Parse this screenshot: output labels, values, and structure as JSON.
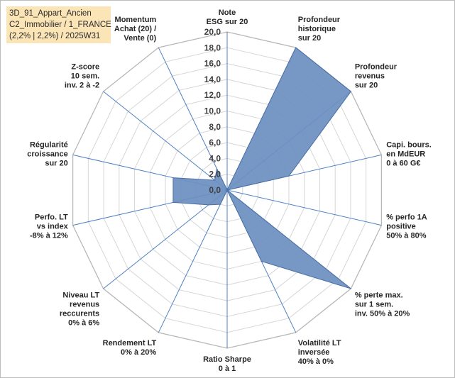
{
  "title_lines": [
    "3D_91_Appart_Ancien",
    "C2_Immobilier / 1_FRANCE",
    "(2,2% | 2,2%) / 2025W31"
  ],
  "chart_data": {
    "type": "radar",
    "title": "3D_91_Appart_Ancien C2_Immobilier / 1_FRANCE (2,2% | 2,2%) / 2025W31",
    "rlim": [
      0,
      20
    ],
    "grid": true,
    "legend": "none",
    "tick_labels": [
      "0,0",
      "2,0",
      "4,0",
      "6,0",
      "8,0",
      "10,0",
      "12,0",
      "14,0",
      "16,0",
      "18,0",
      "20,0"
    ],
    "categories": [
      [
        "Note",
        "ESG sur 20"
      ],
      [
        "Profondeur",
        "historique",
        "sur 20"
      ],
      [
        "Profondeur",
        "revenus",
        "sur 20"
      ],
      [
        "Capi. bours.",
        "en MdEUR",
        "0 à 60 G€"
      ],
      [
        "% perfo 1A",
        "positive",
        "50% à 80%"
      ],
      [
        "% perte max.",
        "sur 1 sem.",
        "inv. 50% à 20%"
      ],
      [
        "Volatilité LT",
        "inversée",
        "40% à 0%"
      ],
      [
        "Ratio Sharpe",
        "0 à 1"
      ],
      [
        "Rendement LT",
        "0% à 20%"
      ],
      [
        "Niveau LT",
        "revenus",
        "reccurents",
        "0% à 6%"
      ],
      [
        "Perfo. LT",
        "vs index",
        "-8% à 12%"
      ],
      [
        "Régularité",
        "croissance",
        "sur 20"
      ],
      [
        "Z-score",
        "10 sem.",
        "inv. 2 à -2"
      ],
      [
        "Momentum",
        "Achat (20) /",
        "Vente (0)"
      ]
    ],
    "series": [
      {
        "values": [
          0,
          20,
          20,
          8,
          0,
          20,
          10,
          0,
          2,
          3,
          7,
          7,
          2,
          3
        ]
      }
    ],
    "colors": {
      "fill": "#6b8fc0",
      "stroke": "#4a6fa5",
      "grid": "#d6d6d6",
      "spoke": "#4f80c4"
    }
  }
}
